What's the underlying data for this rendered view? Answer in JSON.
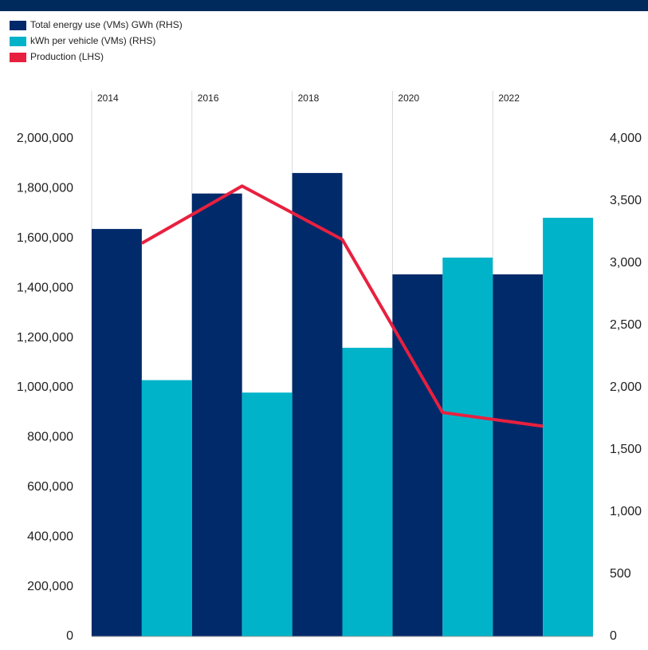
{
  "chart_data": {
    "type": "bar",
    "categories": [
      "2014",
      "2016",
      "2018",
      "2020",
      "2022"
    ],
    "series": [
      {
        "name": "Total energy use (VMs) GWh (RHS)",
        "type": "bar",
        "axis": "y2",
        "color": "#002a6a",
        "values": [
          3275,
          3560,
          3725,
          2910,
          2910
        ]
      },
      {
        "name": "kWh per vehicle (VMs) (RHS)",
        "type": "bar",
        "axis": "y2",
        "color": "#00b3c9",
        "values": [
          2060,
          1960,
          2320,
          3045,
          3365
        ]
      },
      {
        "name": "Production (LHS)",
        "type": "line",
        "axis": "y",
        "color": "#e8203f",
        "values": [
          1580000,
          1810000,
          1595000,
          900000,
          845000
        ]
      }
    ],
    "ylim": [
      0,
      2000000
    ],
    "yticks": [
      0,
      {
        "value": 200000,
        "label": "200,000"
      },
      {
        "value": 400000,
        "label": "400,000"
      },
      {
        "value": 600000,
        "label": "600,000"
      },
      {
        "value": 800000,
        "label": "800,000"
      },
      {
        "value": 1000000,
        "label": "1,000,000"
      },
      {
        "value": 1200000,
        "label": "1,200,000"
      },
      {
        "value": 1400000,
        "label": "1,400,000"
      },
      {
        "value": 1600000,
        "label": "1,600,000"
      },
      {
        "value": 1800000,
        "label": "1,800,000"
      },
      {
        "value": 2000000,
        "label": "2,000,000"
      }
    ],
    "y2lim": [
      0,
      4000
    ],
    "y2ticks": [
      0,
      500,
      {
        "value": 1000,
        "label": "1,000"
      },
      {
        "value": 1500,
        "label": "1,500"
      },
      {
        "value": 2000,
        "label": "2,000"
      },
      {
        "value": 2500,
        "label": "2,500"
      },
      {
        "value": 3000,
        "label": "3,000"
      },
      {
        "value": 3500,
        "label": "3,500"
      },
      {
        "value": 4000,
        "label": "4,000"
      }
    ],
    "grid": true,
    "legend": "top-left"
  }
}
